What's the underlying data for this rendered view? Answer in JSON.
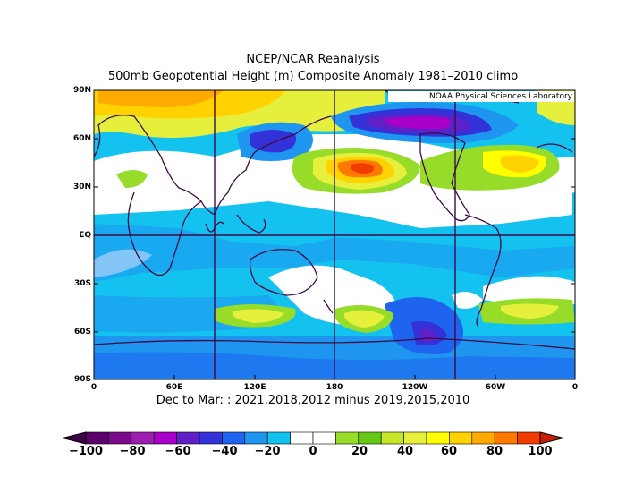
{
  "title_line1": "NCEP/NCAR Reanalysis",
  "title_line2": "500mb Geopotential Height (m) Composite Anomaly 1981–2010 climo",
  "credit": "NOAA Physical Sciences Laboratory",
  "subtitle": "Dec to Mar: : 2021,2018,2012 minus 2019,2015,2010",
  "lat_labels": [
    "90N",
    "60N",
    "30N",
    "EQ",
    "30S",
    "60S",
    "90S"
  ],
  "lon_labels": [
    "0",
    "60E",
    "120E",
    "180",
    "120W",
    "60W",
    "0"
  ],
  "colorbar": {
    "labels": [
      "−100",
      "−80",
      "−60",
      "−40",
      "−20",
      "0",
      "20",
      "40",
      "60",
      "80",
      "100"
    ],
    "colors": [
      "#5b006a",
      "#7a0a8c",
      "#9b1eb0",
      "#a800c8",
      "#6020c8",
      "#3232d8",
      "#1e64ee",
      "#1e96f0",
      "#14c2f0",
      "#ffffff",
      "#ffffff",
      "#96dc28",
      "#64c814",
      "#c8e628",
      "#e6f03c",
      "#ffff00",
      "#ffd200",
      "#ffaa00",
      "#ff7800",
      "#f03c00"
    ]
  }
}
